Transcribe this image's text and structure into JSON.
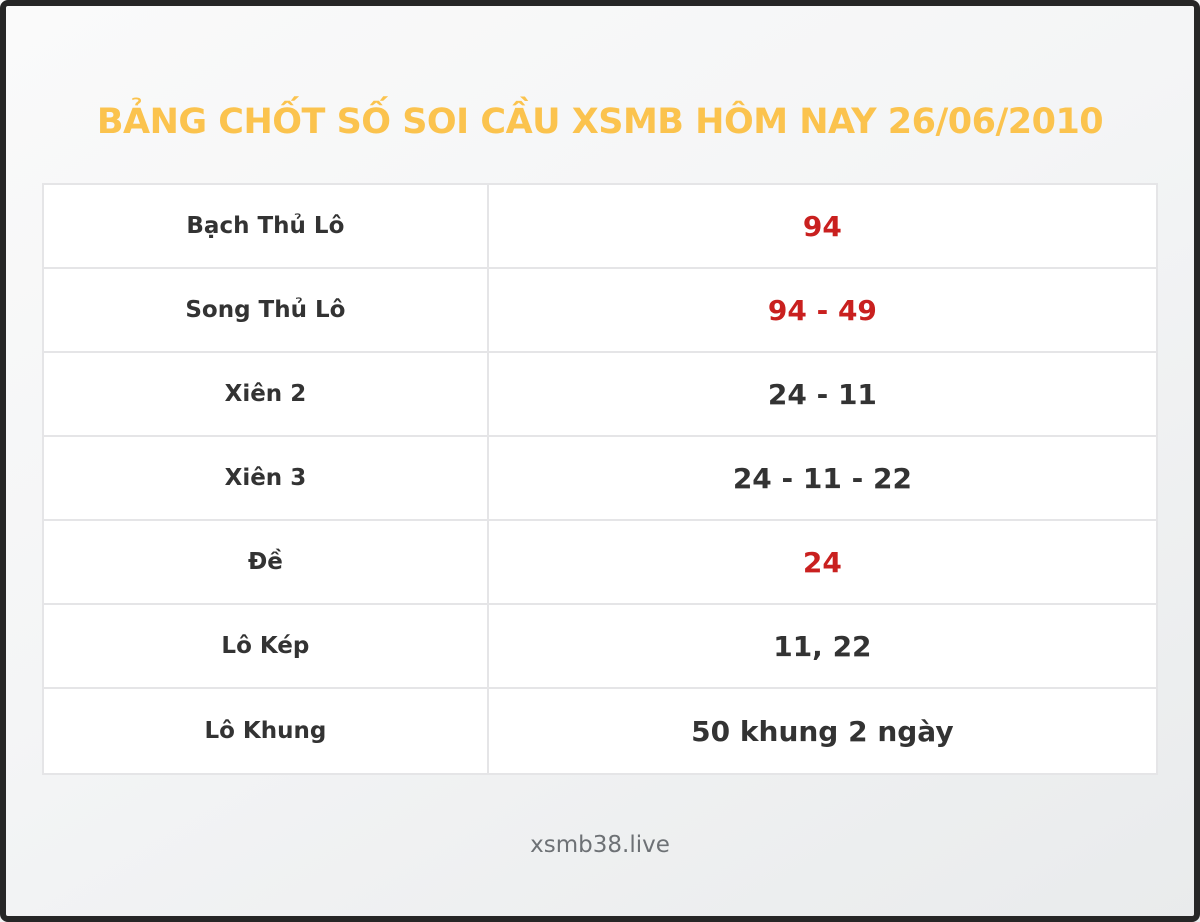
{
  "colors": {
    "title_gold": "#fbc34e",
    "value_red": "#c9201f",
    "text_dark": "#333333",
    "border_gray": "#e5e5e7",
    "footer_gray": "#6d7175",
    "frame_dark": "#262626"
  },
  "header": {
    "title": "BẢNG CHỐT SỐ SOI CẦU XSMB HÔM NAY 26/06/2010"
  },
  "table": {
    "rows": [
      {
        "label": "Bạch Thủ Lô",
        "value": "94",
        "variant": "red"
      },
      {
        "label": "Song Thủ Lô",
        "value": "94 - 49",
        "variant": "red"
      },
      {
        "label": "Xiên 2",
        "value": "24 - 11",
        "variant": "dark"
      },
      {
        "label": "Xiên 3",
        "value": "24 - 11 - 22",
        "variant": "dark"
      },
      {
        "label": "Đề",
        "value": "24",
        "variant": "red"
      },
      {
        "label": "Lô Kép",
        "value": "11, 22",
        "variant": "dark"
      },
      {
        "label": "Lô Khung",
        "value": "50 khung 2 ngày",
        "variant": "dark"
      }
    ]
  },
  "footer": {
    "site": "xsmb38.live"
  }
}
